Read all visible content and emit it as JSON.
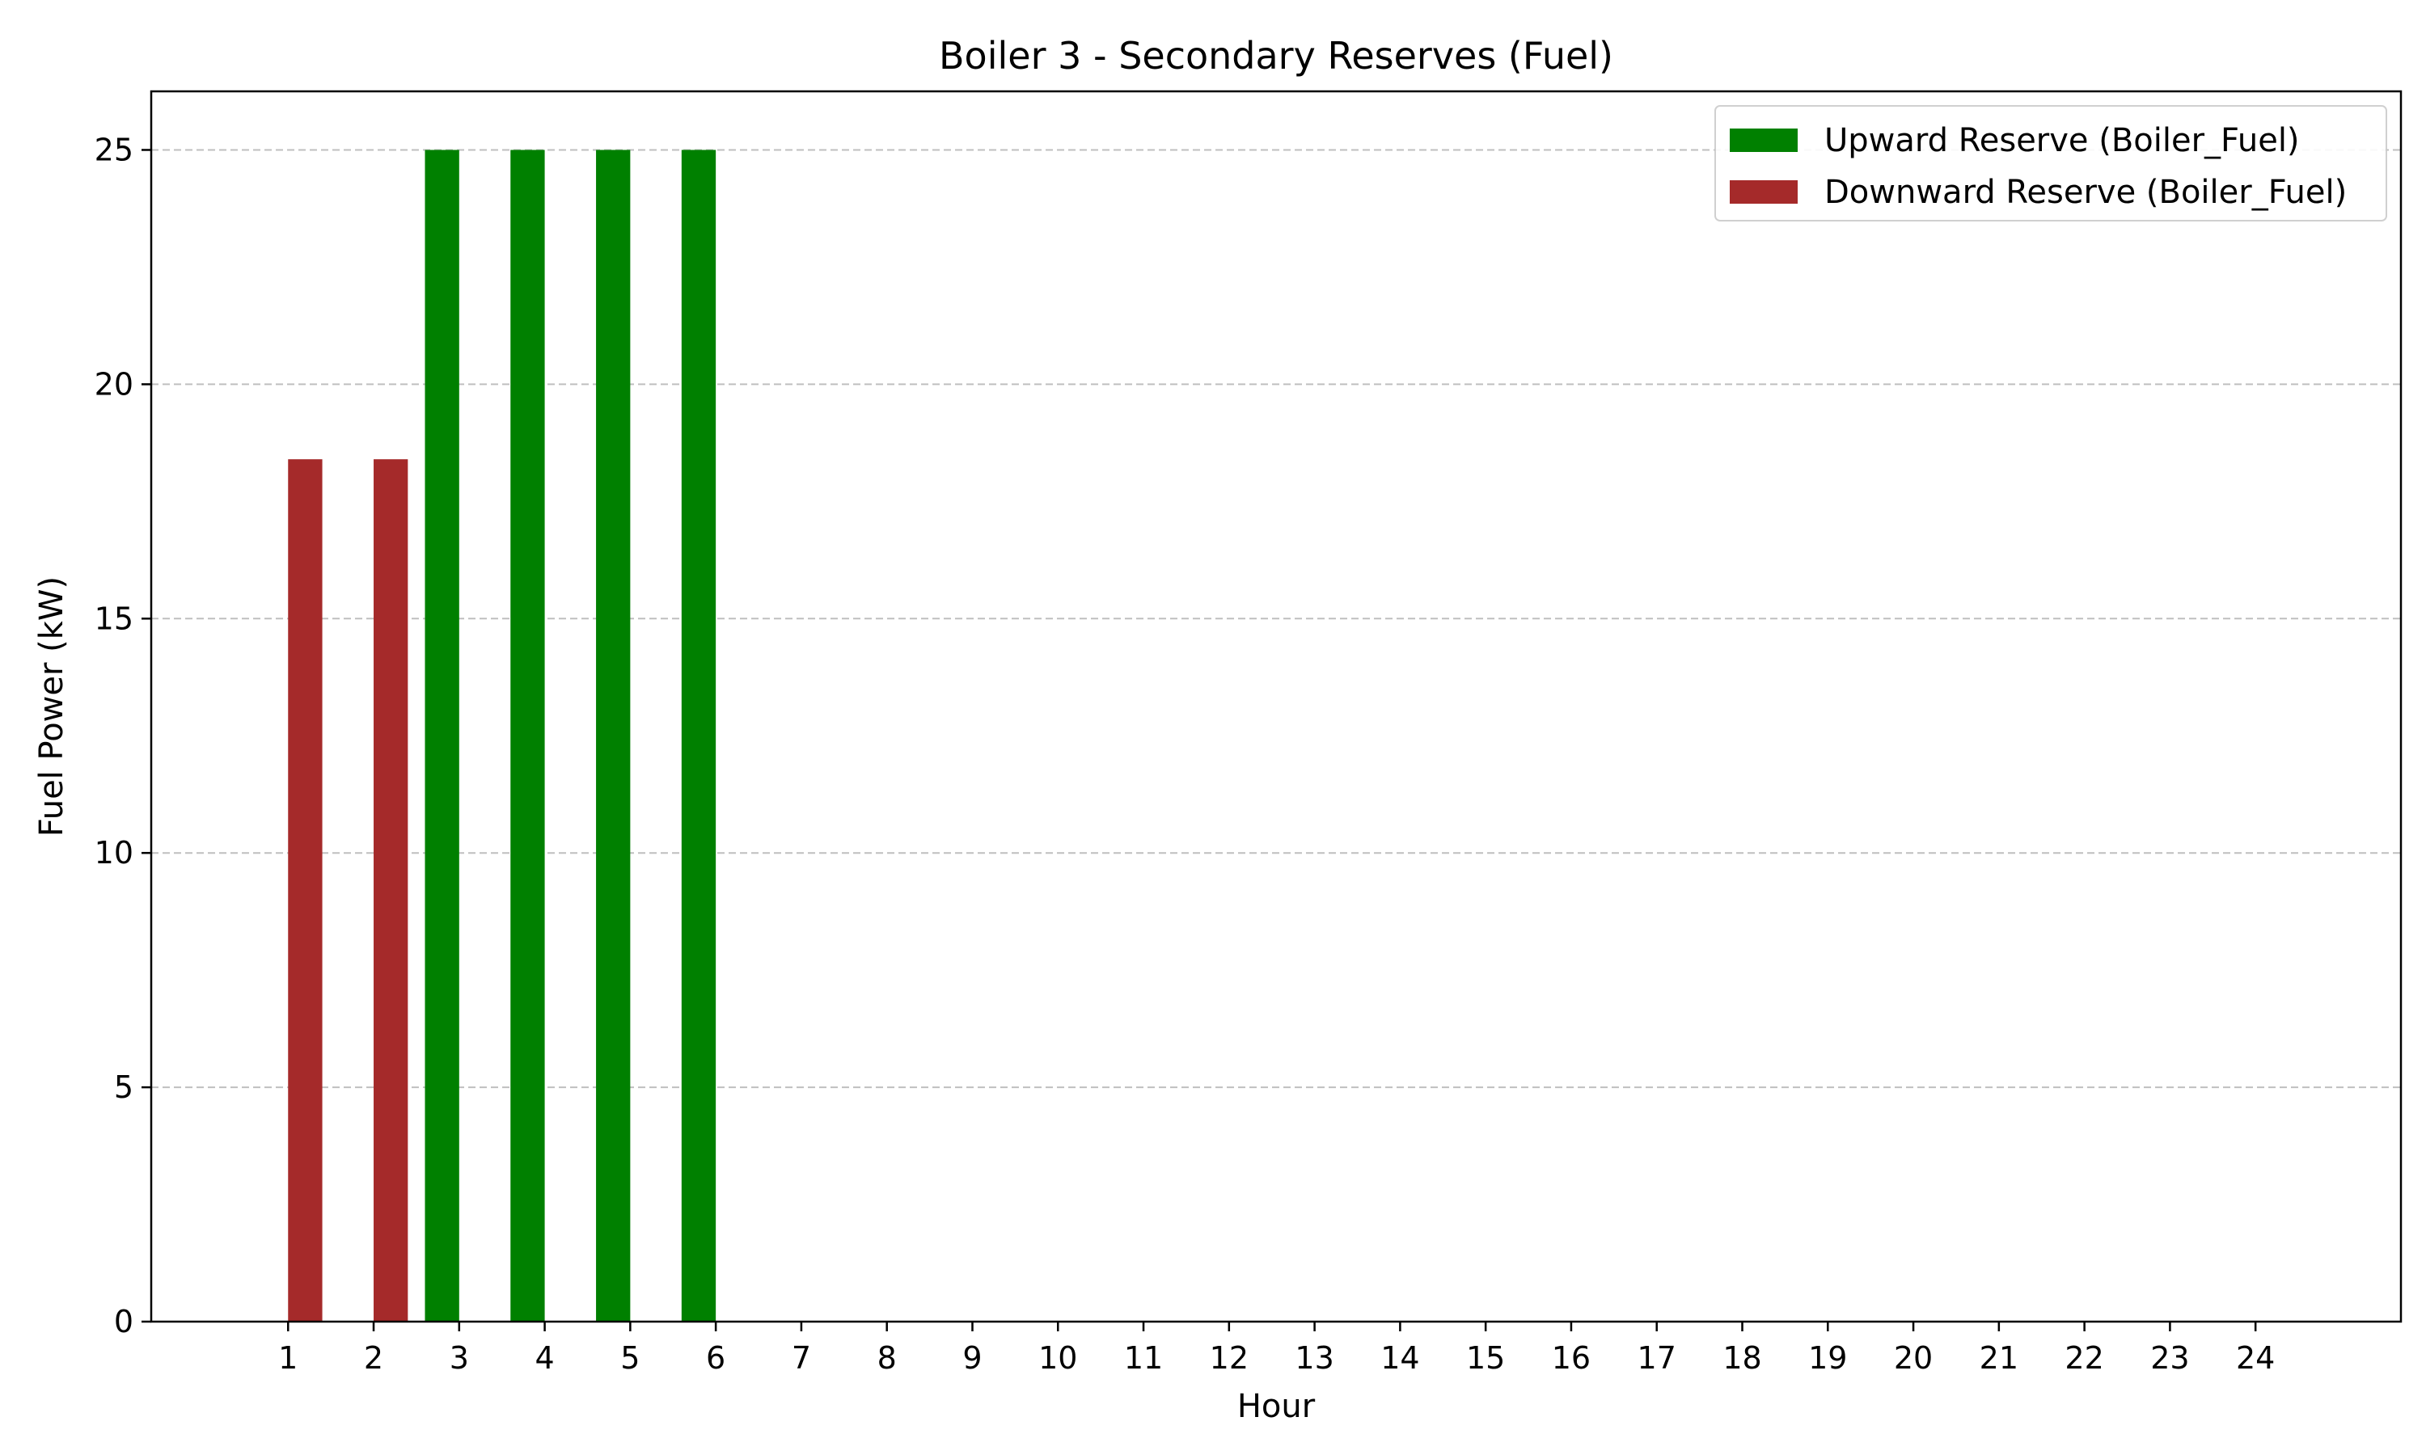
{
  "chart_data": {
    "type": "bar",
    "title": "Boiler 3 - Secondary Reserves (Fuel)",
    "xlabel": "Hour",
    "ylabel": "Fuel Power (kW)",
    "categories": [
      "1",
      "2",
      "3",
      "4",
      "5",
      "6",
      "7",
      "8",
      "9",
      "10",
      "11",
      "12",
      "13",
      "14",
      "15",
      "16",
      "17",
      "18",
      "19",
      "20",
      "21",
      "22",
      "23",
      "24"
    ],
    "series": [
      {
        "name": "Upward Reserve (Boiler_Fuel)",
        "color": "#008000",
        "values": [
          0,
          0,
          25,
          25,
          25,
          25,
          0,
          0,
          0,
          0,
          0,
          0,
          0,
          0,
          0,
          0,
          0,
          0,
          0,
          0,
          0,
          0,
          0,
          0
        ]
      },
      {
        "name": "Downward Reserve (Boiler_Fuel)",
        "color": "#a52a2a",
        "values": [
          18.4,
          18.4,
          0,
          0,
          0,
          0,
          0,
          0,
          0,
          0,
          0,
          0,
          0,
          0,
          0,
          0,
          0,
          0,
          0,
          0,
          0,
          0,
          0,
          0
        ]
      }
    ],
    "ylim": [
      0,
      26.25
    ],
    "xlim": [
      -0.6,
      25.7
    ],
    "yticks": [
      0,
      5,
      10,
      15,
      20,
      25
    ],
    "grid": "y-dashed",
    "legend": "top-right"
  }
}
